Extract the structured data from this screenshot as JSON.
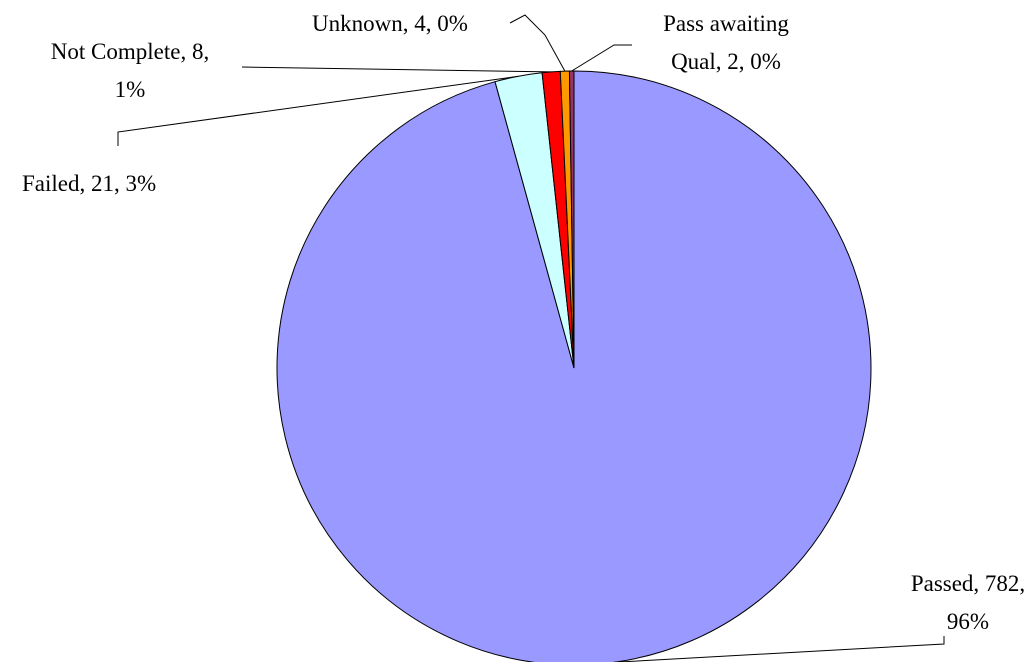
{
  "chart_data": {
    "type": "pie",
    "title": "",
    "slices": [
      {
        "name": "Passed",
        "value": 782,
        "percent": "96%",
        "color": "#9999ff",
        "label_lines": [
          "Passed, 782,",
          "96%"
        ]
      },
      {
        "name": "Failed",
        "value": 21,
        "percent": "3%",
        "color": "#ccffff",
        "label_lines": [
          "Failed, 21, 3%"
        ]
      },
      {
        "name": "Not Complete",
        "value": 8,
        "percent": "1%",
        "color": "#ff0000",
        "label_lines": [
          "Not Complete, 8,",
          "1%"
        ]
      },
      {
        "name": "Unknown",
        "value": 4,
        "percent": "0%",
        "color": "#ff9900",
        "label_lines": [
          "Unknown, 4, 0%"
        ]
      },
      {
        "name": "Pass awaiting Qual",
        "value": 2,
        "percent": "0%",
        "color": "#993366",
        "label_lines": [
          "Pass awaiting",
          "Qual, 2, 0%"
        ]
      }
    ]
  }
}
